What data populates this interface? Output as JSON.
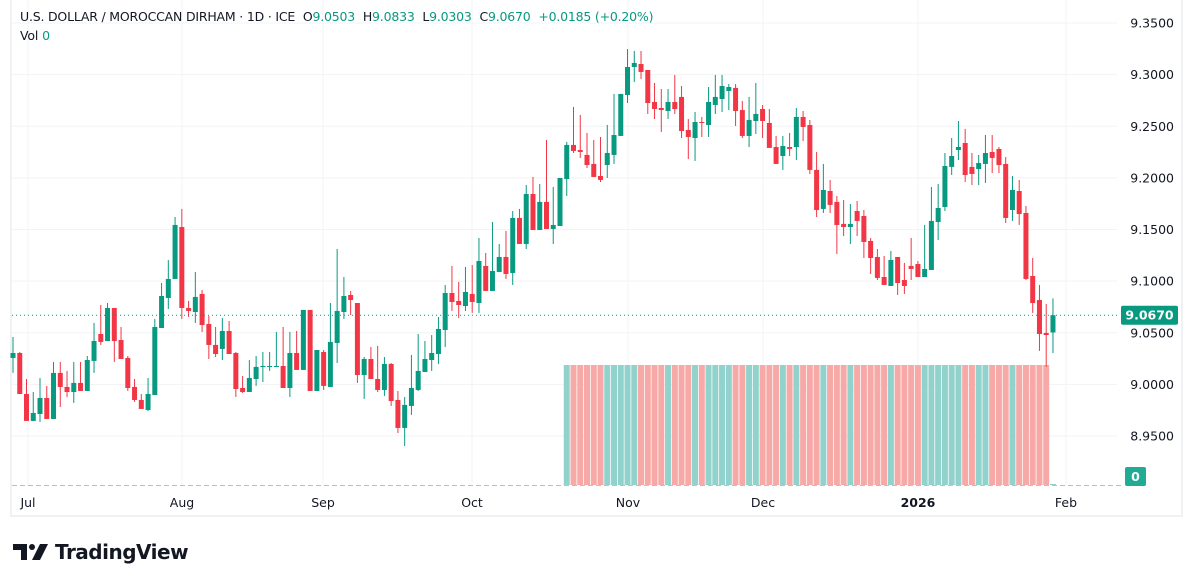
{
  "header": {
    "symbol": "U.S. DOLLAR / MOROCCAN DIRHAM",
    "sep": "·",
    "interval": "1D",
    "exchange": "ICE",
    "open_label": "O",
    "open": "9.0503",
    "high_label": "H",
    "high": "9.0833",
    "low_label": "L",
    "low": "9.0303",
    "close_label": "C",
    "close": "9.0670",
    "change": "+0.0185 (+0.20%)",
    "vol_label": "Vol",
    "vol": "0"
  },
  "branding": {
    "logo_text": "TradingView"
  },
  "colors": {
    "up": "#089981",
    "down": "#f23645",
    "vol_up": "#92d2cc",
    "vol_down": "#f7a9a7",
    "grid": "#f2f3f5",
    "last_price_bg": "#089981",
    "vol_badge_bg": "#22ab94"
  },
  "chart_data": {
    "type": "candlestick",
    "title": "U.S. DOLLAR / MOROCCAN DIRHAM · 1D · ICE",
    "ylim": [
      8.9,
      9.36
    ],
    "y_ticks": [
      "9.3500",
      "9.3000",
      "9.2500",
      "9.2000",
      "9.1500",
      "9.1000",
      "9.0500",
      "9.0000",
      "8.9500"
    ],
    "x_ticks": [
      {
        "label": "Jul",
        "bold": false
      },
      {
        "label": "Aug",
        "bold": false
      },
      {
        "label": "Sep",
        "bold": false
      },
      {
        "label": "Oct",
        "bold": false
      },
      {
        "label": "Nov",
        "bold": false
      },
      {
        "label": "Dec",
        "bold": false
      },
      {
        "label": "2026",
        "bold": true
      },
      {
        "label": "Feb",
        "bold": false
      }
    ],
    "last_price": "9.0670",
    "volume_last": "0",
    "grid": true,
    "ohlc_columns": [
      "open",
      "high",
      "low",
      "close"
    ],
    "candles": [
      [
        9.0256,
        9.0459,
        9.0111,
        9.0304
      ],
      [
        9.0304,
        9.0314,
        8.9907,
        8.9907
      ],
      [
        8.9907,
        9.0052,
        8.9646,
        8.9646
      ],
      [
        8.9646,
        8.9926,
        8.9646,
        8.9723
      ],
      [
        8.9713,
        9.0062,
        8.9636,
        8.9868
      ],
      [
        8.9868,
        8.9985,
        8.9665,
        8.9665
      ],
      [
        8.9665,
        9.0217,
        8.9665,
        9.0111
      ],
      [
        9.0111,
        9.0217,
        8.9781,
        8.9975
      ],
      [
        8.9975,
        9.013,
        8.9878,
        8.9926
      ],
      [
        8.9926,
        9.0217,
        8.982,
        9.0014
      ],
      [
        9.0014,
        9.0217,
        8.9936,
        8.9936
      ],
      [
        8.9936,
        9.0275,
        8.9936,
        9.0236
      ],
      [
        9.0227,
        9.0595,
        9.0111,
        9.042
      ],
      [
        9.0488,
        9.0769,
        9.0382,
        9.0411
      ],
      [
        9.042,
        9.0788,
        9.042,
        9.074
      ],
      [
        9.074,
        9.074,
        9.0217,
        9.042
      ],
      [
        9.043,
        9.0556,
        9.0246,
        9.0246
      ],
      [
        9.0256,
        9.0275,
        8.9936,
        8.9965
      ],
      [
        8.9975,
        9.0052,
        8.983,
        8.9849
      ],
      [
        8.9849,
        8.9907,
        8.9762,
        8.9762
      ],
      [
        8.9752,
        9.0062,
        8.9742,
        8.9907
      ],
      [
        8.9897,
        9.0633,
        8.9897,
        9.0556
      ],
      [
        9.0546,
        9.0982,
        9.0546,
        9.0856
      ],
      [
        9.0837,
        9.1205,
        9.073,
        9.1021
      ],
      [
        9.1021,
        9.1621,
        9.1021,
        9.1544
      ],
      [
        9.1524,
        9.1699,
        9.0633,
        9.074
      ],
      [
        9.074,
        9.0808,
        9.0653,
        9.0711
      ],
      [
        9.0701,
        9.1089,
        9.0595,
        9.0847
      ],
      [
        9.0876,
        9.0914,
        9.0508,
        9.0575
      ],
      [
        9.0585,
        9.0662,
        9.0246,
        9.0382
      ],
      [
        9.0382,
        9.0556,
        9.0265,
        9.0294
      ],
      [
        9.0343,
        9.0643,
        9.0236,
        9.0517
      ],
      [
        9.0517,
        9.0614,
        9.0294,
        9.0294
      ],
      [
        9.0304,
        9.0314,
        8.9878,
        8.9955
      ],
      [
        8.9965,
        9.0081,
        8.9917,
        8.9926
      ],
      [
        8.9926,
        9.0236,
        8.9926,
        9.0062
      ],
      [
        9.0052,
        9.0275,
        8.9985,
        9.0169
      ],
      [
        9.0169,
        9.0314,
        9.0023,
        9.0178
      ],
      [
        9.0169,
        9.0314,
        9.013,
        9.0178
      ],
      [
        9.0169,
        9.0508,
        9.0169,
        9.0178
      ],
      [
        9.0178,
        9.0556,
        8.9965,
        8.9965
      ],
      [
        8.9965,
        9.0508,
        8.9878,
        9.0304
      ],
      [
        9.0304,
        9.0517,
        9.014,
        9.014
      ],
      [
        9.014,
        9.0721,
        9.014,
        9.0721
      ],
      [
        9.0721,
        9.0721,
        8.9936,
        8.9936
      ],
      [
        8.9936,
        9.0333,
        8.9936,
        9.0333
      ],
      [
        9.0314,
        9.0333,
        8.9946,
        8.9985
      ],
      [
        8.9975,
        9.0788,
        8.9975,
        9.0411
      ],
      [
        9.0401,
        9.1311,
        9.0207,
        9.0711
      ],
      [
        9.0701,
        9.104,
        9.0633,
        9.0856
      ],
      [
        9.0866,
        9.0905,
        9.0672,
        9.0817
      ],
      [
        9.0788,
        9.0788,
        9.0014,
        9.0091
      ],
      [
        9.0091,
        9.0265,
        8.9859,
        9.0246
      ],
      [
        9.0246,
        9.0362,
        9.0052,
        9.0052
      ],
      [
        9.0052,
        9.0372,
        8.9926,
        8.9946
      ],
      [
        8.9946,
        9.0265,
        8.9888,
        9.0198
      ],
      [
        9.0198,
        9.0207,
        8.9791,
        8.9839
      ],
      [
        8.9849,
        8.9936,
        8.9529,
        8.9578
      ],
      [
        8.9578,
        8.9878,
        8.9403,
        8.9801
      ],
      [
        8.9791,
        9.0285,
        8.9704,
        8.9965
      ],
      [
        8.9946,
        9.0488,
        8.9936,
        9.013
      ],
      [
        9.012,
        9.042,
        9.012,
        9.0246
      ],
      [
        9.0236,
        9.0478,
        9.013,
        9.0304
      ],
      [
        9.0294,
        9.0653,
        9.0198,
        9.0537
      ],
      [
        9.0527,
        9.0963,
        9.0362,
        9.0885
      ],
      [
        9.0885,
        9.1147,
        9.0711,
        9.0798
      ],
      [
        9.0808,
        9.0992,
        9.0643,
        9.0769
      ],
      [
        9.0759,
        9.1137,
        9.0711,
        9.0895
      ],
      [
        9.0876,
        9.1156,
        9.0692,
        9.0798
      ],
      [
        9.0788,
        9.1418,
        9.0692,
        9.1195
      ],
      [
        9.1147,
        9.1273,
        9.0905,
        9.0905
      ],
      [
        9.0905,
        9.1573,
        9.0905,
        9.1098
      ],
      [
        9.1089,
        9.136,
        9.1089,
        9.1234
      ],
      [
        9.1234,
        9.1486,
        9.1021,
        9.1069
      ],
      [
        9.1079,
        9.1679,
        9.0963,
        9.1612
      ],
      [
        9.1612,
        9.1699,
        9.136,
        9.136
      ],
      [
        9.136,
        9.1931,
        9.1311,
        9.1844
      ],
      [
        9.1844,
        9.2009,
        9.1495,
        9.1495
      ],
      [
        9.1495,
        9.1941,
        9.1495,
        9.1767
      ],
      [
        9.1767,
        9.2367,
        9.1505,
        9.1505
      ],
      [
        9.1505,
        9.1912,
        9.136,
        9.1544
      ],
      [
        9.1534,
        9.1999,
        9.1534,
        9.1999
      ],
      [
        9.1989,
        9.2348,
        9.1825,
        9.2319
      ],
      [
        9.2319,
        9.2687,
        9.2241,
        9.2261
      ],
      [
        9.227,
        9.2609,
        9.2193,
        9.2251
      ],
      [
        9.2222,
        9.2435,
        9.2096,
        9.2125
      ],
      [
        9.2135,
        9.2367,
        9.2009,
        9.2009
      ],
      [
        9.2018,
        9.2396,
        9.196,
        9.198
      ],
      [
        9.2125,
        9.2512,
        9.1999,
        9.2241
      ],
      [
        9.2222,
        9.2813,
        9.2135,
        9.2415
      ],
      [
        9.2406,
        9.2813,
        9.2406,
        9.2813
      ],
      [
        9.2803,
        9.3248,
        9.2725,
        9.3074
      ],
      [
        9.3074,
        9.3229,
        9.2929,
        9.3113
      ],
      [
        9.3103,
        9.3229,
        9.2958,
        9.3026
      ],
      [
        9.3045,
        9.3045,
        9.2619,
        9.2725
      ],
      [
        9.2735,
        9.2919,
        9.257,
        9.2667
      ],
      [
        9.2677,
        9.2861,
        9.2445,
        9.2657
      ],
      [
        9.2648,
        9.2861,
        9.257,
        9.2735
      ],
      [
        9.2735,
        9.2997,
        9.2619,
        9.2667
      ],
      [
        9.2784,
        9.289,
        9.2386,
        9.2454
      ],
      [
        9.2464,
        9.257,
        9.2183,
        9.2396
      ],
      [
        9.2386,
        9.2638,
        9.2164,
        9.2541
      ],
      [
        9.2541,
        9.259,
        9.2396,
        9.2532
      ],
      [
        9.2512,
        9.288,
        9.2396,
        9.2735
      ],
      [
        9.2706,
        9.2997,
        9.2619,
        9.2784
      ],
      [
        9.2764,
        9.2997,
        9.2638,
        9.289
      ],
      [
        9.2842,
        9.2909,
        9.2657,
        9.288
      ],
      [
        9.2871,
        9.2909,
        9.2503,
        9.2648
      ],
      [
        9.2657,
        9.2745,
        9.2386,
        9.2406
      ],
      [
        9.2406,
        9.2784,
        9.2299,
        9.2561
      ],
      [
        9.2551,
        9.2919,
        9.2425,
        9.2619
      ],
      [
        9.2667,
        9.2706,
        9.2386,
        9.2551
      ],
      [
        9.2532,
        9.2667,
        9.229,
        9.229
      ],
      [
        9.2299,
        9.2406,
        9.2135,
        9.2135
      ],
      [
        9.2212,
        9.2406,
        9.2077,
        9.2309
      ],
      [
        9.2299,
        9.2435,
        9.2212,
        9.228
      ],
      [
        9.2299,
        9.2677,
        9.2173,
        9.259
      ],
      [
        9.259,
        9.2648,
        9.2357,
        9.2493
      ],
      [
        9.2512,
        9.2561,
        9.2038,
        9.2077
      ],
      [
        9.2077,
        9.2251,
        9.1621,
        9.1689
      ],
      [
        9.1699,
        9.2135,
        9.166,
        9.1883
      ],
      [
        9.1873,
        9.198,
        9.166,
        9.1738
      ],
      [
        9.1767,
        9.1825,
        9.1263,
        9.1544
      ],
      [
        9.1554,
        9.1786,
        9.1437,
        9.1524
      ],
      [
        9.1524,
        9.1747,
        9.136,
        9.1554
      ],
      [
        9.1679,
        9.1776,
        9.1437,
        9.1583
      ],
      [
        9.1631,
        9.1689,
        9.1224,
        9.1379
      ],
      [
        9.1389,
        9.1418,
        9.1069,
        9.1224
      ],
      [
        9.1234,
        9.1311,
        9.1011,
        9.1031
      ],
      [
        9.104,
        9.1244,
        9.0963,
        9.0963
      ],
      [
        9.0953,
        9.1292,
        9.0953,
        9.1205
      ],
      [
        9.1234,
        9.1234,
        9.0866,
        9.0982
      ],
      [
        9.1011,
        9.1176,
        9.0876,
        9.0953
      ],
      [
        9.1147,
        9.1418,
        9.1011,
        9.1118
      ],
      [
        9.1166,
        9.1195,
        9.104,
        9.104
      ],
      [
        9.104,
        9.1544,
        9.104,
        9.1118
      ],
      [
        9.1108,
        9.1912,
        9.1108,
        9.1583
      ],
      [
        9.1573,
        9.1941,
        9.1399,
        9.1708
      ],
      [
        9.1718,
        9.2241,
        9.1679,
        9.2115
      ],
      [
        9.2106,
        9.2386,
        9.2028,
        9.2212
      ],
      [
        9.227,
        9.2551,
        9.2173,
        9.2299
      ],
      [
        9.2338,
        9.2474,
        9.196,
        9.2028
      ],
      [
        9.2106,
        9.2241,
        9.1931,
        9.2038
      ],
      [
        9.2086,
        9.2222,
        9.1931,
        9.2144
      ],
      [
        9.2135,
        9.2415,
        9.1951,
        9.2241
      ],
      [
        9.2251,
        9.2415,
        9.2047,
        9.2193
      ],
      [
        9.228,
        9.2299,
        9.2047,
        9.2125
      ],
      [
        9.2135,
        9.2202,
        9.1563,
        9.1612
      ],
      [
        9.1689,
        9.2018,
        9.1583,
        9.1883
      ],
      [
        9.1873,
        9.198,
        9.1544,
        9.165
      ],
      [
        9.166,
        9.1728,
        9.1011,
        9.1021
      ],
      [
        9.105,
        9.1224,
        9.0692,
        9.0788
      ],
      [
        9.0817,
        9.0963,
        9.0324,
        9.0488
      ],
      [
        9.0498,
        9.0779,
        9.0169,
        9.0478
      ],
      [
        9.0503,
        9.0833,
        9.0303,
        9.067
      ]
    ]
  }
}
